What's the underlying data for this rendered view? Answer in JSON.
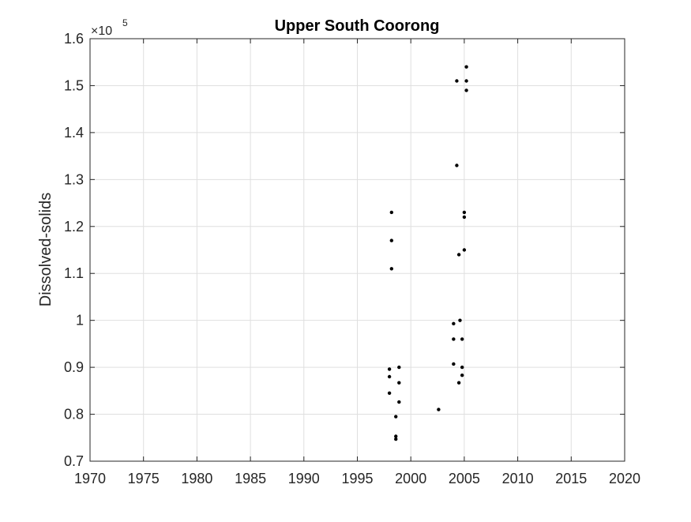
{
  "chart_data": {
    "type": "scatter",
    "title": "Upper South Coorong",
    "xlabel": "",
    "ylabel": "Dissolved-solids",
    "y_exponent_base": "×10",
    "y_exponent_power": "5",
    "xlim": [
      1970,
      2020
    ],
    "ylim": [
      0.7,
      1.6
    ],
    "y_scale_factor": 100000,
    "x_ticks": [
      1970,
      1975,
      1980,
      1985,
      1990,
      1995,
      2000,
      2005,
      2010,
      2015,
      2020
    ],
    "x_tick_labels": [
      "1970",
      "1975",
      "1980",
      "1985",
      "1990",
      "1995",
      "2000",
      "2005",
      "2010",
      "2015",
      "2020"
    ],
    "y_ticks": [
      0.7,
      0.8,
      0.9,
      1.0,
      1.1,
      1.2,
      1.3,
      1.4,
      1.5,
      1.6
    ],
    "y_tick_labels": [
      "0.7",
      "0.8",
      "0.9",
      "1",
      "1.1",
      "1.2",
      "1.3",
      "1.4",
      "1.5",
      "1.6"
    ],
    "grid": true,
    "marker_color": "#000000",
    "grid_color": "#dfdfdf",
    "axis_color": "#262626",
    "points": [
      {
        "x": 1998.2,
        "y": 1.23
      },
      {
        "x": 1998.2,
        "y": 1.17
      },
      {
        "x": 1998.2,
        "y": 1.11
      },
      {
        "x": 1998.0,
        "y": 0.896
      },
      {
        "x": 1998.0,
        "y": 0.88
      },
      {
        "x": 1998.0,
        "y": 0.845
      },
      {
        "x": 1998.9,
        "y": 0.9
      },
      {
        "x": 1998.9,
        "y": 0.867
      },
      {
        "x": 1998.9,
        "y": 0.826
      },
      {
        "x": 1998.6,
        "y": 0.795
      },
      {
        "x": 1998.6,
        "y": 0.753
      },
      {
        "x": 1998.6,
        "y": 0.747
      },
      {
        "x": 2002.6,
        "y": 0.81
      },
      {
        "x": 2004.0,
        "y": 0.993
      },
      {
        "x": 2004.0,
        "y": 0.96
      },
      {
        "x": 2004.0,
        "y": 0.907
      },
      {
        "x": 2004.3,
        "y": 1.51
      },
      {
        "x": 2004.3,
        "y": 1.33
      },
      {
        "x": 2004.5,
        "y": 1.14
      },
      {
        "x": 2004.6,
        "y": 1.0
      },
      {
        "x": 2004.5,
        "y": 0.867
      },
      {
        "x": 2004.8,
        "y": 0.96
      },
      {
        "x": 2004.8,
        "y": 0.9
      },
      {
        "x": 2004.8,
        "y": 0.883
      },
      {
        "x": 2005.0,
        "y": 1.23
      },
      {
        "x": 2005.0,
        "y": 1.22
      },
      {
        "x": 2005.0,
        "y": 1.15
      },
      {
        "x": 2005.2,
        "y": 1.54
      },
      {
        "x": 2005.2,
        "y": 1.51
      },
      {
        "x": 2005.2,
        "y": 1.49
      }
    ]
  }
}
